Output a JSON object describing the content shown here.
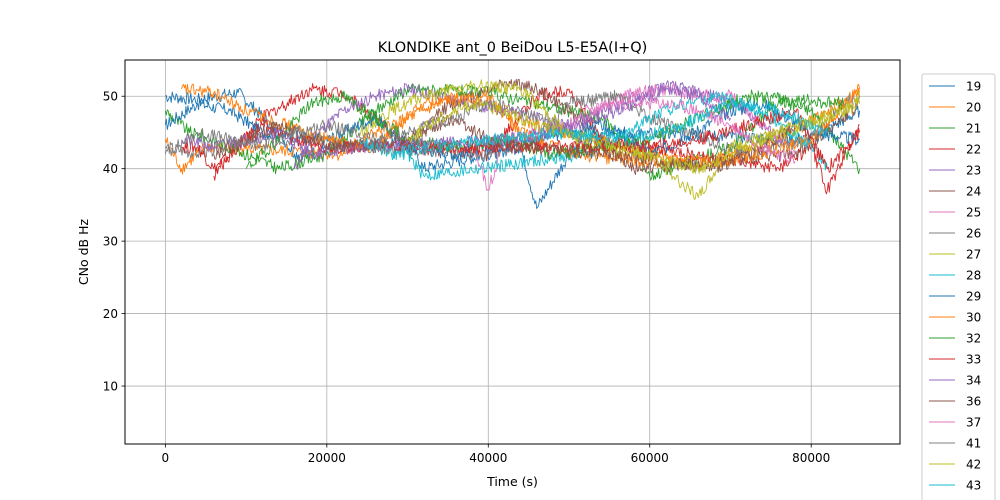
{
  "chart_data": {
    "type": "line",
    "title": "KLONDIKE ant_0 BeiDou L5-E5A(I+Q)",
    "xlabel": "Time (s)",
    "ylabel": "CNo dB Hz",
    "xlim": [
      -5000,
      91000
    ],
    "ylim": [
      2,
      55
    ],
    "xticks": [
      0,
      20000,
      40000,
      60000,
      80000
    ],
    "xtick_labels": [
      "0",
      "20000",
      "40000",
      "60000",
      "80000"
    ],
    "yticks": [
      10,
      20,
      30,
      40,
      50
    ],
    "ytick_labels": [
      "10",
      "20",
      "30",
      "40",
      "50"
    ],
    "grid": true,
    "legend_position": "outside right",
    "series": [
      {
        "name": "19",
        "color": "#1f77b4",
        "x": [
          0,
          4000,
          9000,
          14000,
          16000,
          30000,
          32000,
          44000,
          46000,
          50000,
          54000,
          80000,
          86000
        ],
        "y": [
          50,
          49.5,
          50.5,
          45,
          42,
          44,
          40,
          43,
          34.5,
          42,
          45,
          44,
          48
        ]
      },
      {
        "name": "20",
        "color": "#ff7f0e",
        "x": [
          0,
          2000,
          5000,
          22000,
          26000,
          32000,
          36000,
          40000,
          46000,
          66000,
          76000,
          86000
        ],
        "y": [
          44,
          40,
          43,
          42,
          45,
          48,
          50,
          49,
          46,
          40.5,
          44,
          50.5
        ]
      },
      {
        "name": "21",
        "color": "#2ca02c",
        "x": [
          0,
          3000,
          8000,
          14000,
          20000,
          26000,
          30000,
          40000,
          54000,
          58000,
          60000,
          70000,
          76000,
          80000,
          86000
        ],
        "y": [
          48,
          45,
          43,
          40,
          42,
          48,
          51,
          50.5,
          47,
          43,
          39,
          43,
          49.5,
          48,
          40
        ]
      },
      {
        "name": "22",
        "color": "#d62728",
        "x": [
          6000,
          8000,
          12000,
          18000,
          22000,
          26000,
          30000,
          40000,
          46000,
          50000,
          54000,
          76000,
          80000,
          82000,
          86000
        ],
        "y": [
          39,
          42,
          47,
          51,
          50.5,
          47,
          43,
          42,
          50,
          51,
          44,
          40,
          43,
          37,
          46
        ]
      },
      {
        "name": "23",
        "color": "#9467bd",
        "x": [
          16000,
          18000,
          22000,
          26000,
          30000,
          50000,
          56000,
          62000,
          68000,
          72000,
          76000
        ],
        "y": [
          40,
          44,
          48,
          50,
          51,
          46,
          49,
          51.5,
          50,
          48,
          44
        ]
      },
      {
        "name": "24",
        "color": "#8c564b",
        "x": [
          30000,
          34000,
          38000,
          42000,
          46000,
          50000,
          54000,
          58000,
          78000,
          84000,
          86000
        ],
        "y": [
          42,
          48,
          50,
          52,
          51,
          48,
          44,
          40,
          42,
          47,
          49
        ]
      },
      {
        "name": "25",
        "color": "#e377c2",
        "x": [
          38000,
          40000,
          42000,
          50000,
          56000,
          62000,
          66000,
          70000,
          74000,
          78000
        ],
        "y": [
          44,
          37,
          44,
          46,
          50,
          51,
          50,
          50,
          46,
          42
        ]
      },
      {
        "name": "26",
        "color": "#7f7f7f",
        "x": [
          0,
          4000,
          10000,
          18000,
          24000,
          40000,
          46000,
          50000,
          56000,
          60000,
          72000,
          80000,
          84000,
          86000
        ],
        "y": [
          43,
          42,
          44,
          44,
          43,
          42,
          44,
          49,
          50,
          47,
          42,
          44,
          49,
          50
        ]
      },
      {
        "name": "27",
        "color": "#bcbd22",
        "x": [
          24000,
          28000,
          32000,
          36000,
          40000,
          44000,
          48000,
          52000,
          60000,
          66000,
          70000,
          80000,
          86000
        ],
        "y": [
          45,
          48,
          50,
          51,
          51.5,
          51,
          47,
          43,
          42,
          36,
          43,
          46,
          49
        ]
      },
      {
        "name": "28",
        "color": "#17becf",
        "x": [
          28000,
          30000,
          32000,
          52000,
          56000,
          60000,
          64000,
          68000,
          72000,
          76000,
          80000,
          82000
        ],
        "y": [
          42,
          42,
          39,
          42,
          44,
          47,
          49,
          50,
          49,
          46,
          43,
          40
        ]
      },
      {
        "name": "29",
        "color": "#1f77b4",
        "x": [
          0,
          4000,
          8000,
          12000,
          20000,
          26000,
          30000,
          36000,
          50000,
          54000,
          58000,
          60000,
          64000,
          70000,
          74000,
          80000,
          86000
        ],
        "y": [
          46,
          49,
          48,
          45,
          44,
          47,
          43,
          42,
          45,
          46,
          44,
          42,
          44,
          48,
          49,
          45,
          44
        ]
      },
      {
        "name": "30",
        "color": "#ff7f0e",
        "x": [
          2000,
          6000,
          10000,
          20000,
          26000,
          32000,
          40000,
          44000,
          50000,
          60000,
          70000,
          80000,
          86000
        ],
        "y": [
          51,
          50.5,
          48,
          44,
          43,
          49,
          50,
          45,
          42,
          41,
          41,
          44,
          51
        ]
      },
      {
        "name": "32",
        "color": "#2ca02c",
        "x": [
          10000,
          14000,
          18000,
          22000,
          30000,
          36000,
          42000,
          48000,
          60000,
          66000,
          72000,
          78000,
          84000
        ],
        "y": [
          40,
          44,
          49,
          50,
          44,
          43,
          44,
          42,
          44,
          47,
          50,
          49.5,
          49
        ]
      },
      {
        "name": "33",
        "color": "#d62728",
        "x": [
          2000,
          4000,
          6000,
          12000,
          16000,
          20000,
          60000,
          66000,
          72000,
          78000,
          82000,
          86000
        ],
        "y": [
          43,
          43,
          40,
          46,
          44,
          43,
          43,
          44,
          46,
          48,
          40,
          45
        ]
      },
      {
        "name": "34",
        "color": "#9467bd",
        "x": [
          2000,
          6000,
          10000,
          14000,
          18000,
          24000,
          42000,
          48000,
          54000,
          58000,
          62000,
          66000,
          70000
        ],
        "y": [
          44,
          43,
          44,
          45,
          42,
          43,
          44,
          45,
          47,
          49,
          51,
          50,
          47
        ]
      },
      {
        "name": "36",
        "color": "#8c564b",
        "x": [
          6000,
          10000,
          14000,
          18000,
          22000,
          30000,
          36000,
          40000,
          44000,
          54000,
          62000,
          68000,
          74000,
          78000
        ],
        "y": [
          42,
          44,
          46,
          44,
          43,
          44,
          47,
          44,
          43,
          42,
          41,
          40,
          43,
          46
        ]
      },
      {
        "name": "37",
        "color": "#e377c2",
        "x": [
          52000,
          56000,
          62000,
          66000,
          70000,
          74000,
          78000
        ],
        "y": [
          48,
          49,
          49,
          48,
          46,
          43,
          41
        ]
      },
      {
        "name": "41",
        "color": "#7f7f7f",
        "x": [
          0,
          4000,
          8000,
          12000,
          16000,
          20000,
          26000,
          30000,
          36000,
          40000,
          44000,
          48000,
          52000
        ],
        "y": [
          42,
          45,
          44,
          43,
          45,
          46,
          44,
          45,
          47,
          49,
          48,
          46,
          44
        ]
      },
      {
        "name": "42",
        "color": "#bcbd22",
        "x": [
          30000,
          34000,
          38000,
          42000,
          46000,
          66000,
          72000,
          78000,
          84000,
          86000
        ],
        "y": [
          44,
          47,
          49,
          48,
          46,
          40,
          43,
          46,
          48,
          50
        ]
      },
      {
        "name": "43",
        "color": "#17becf",
        "x": [
          24000,
          28000,
          32000,
          40000,
          50000,
          58000,
          64000,
          70000,
          76000,
          82000
        ],
        "y": [
          44,
          42,
          43,
          44,
          45,
          44,
          46,
          49,
          48,
          45
        ]
      }
    ]
  }
}
